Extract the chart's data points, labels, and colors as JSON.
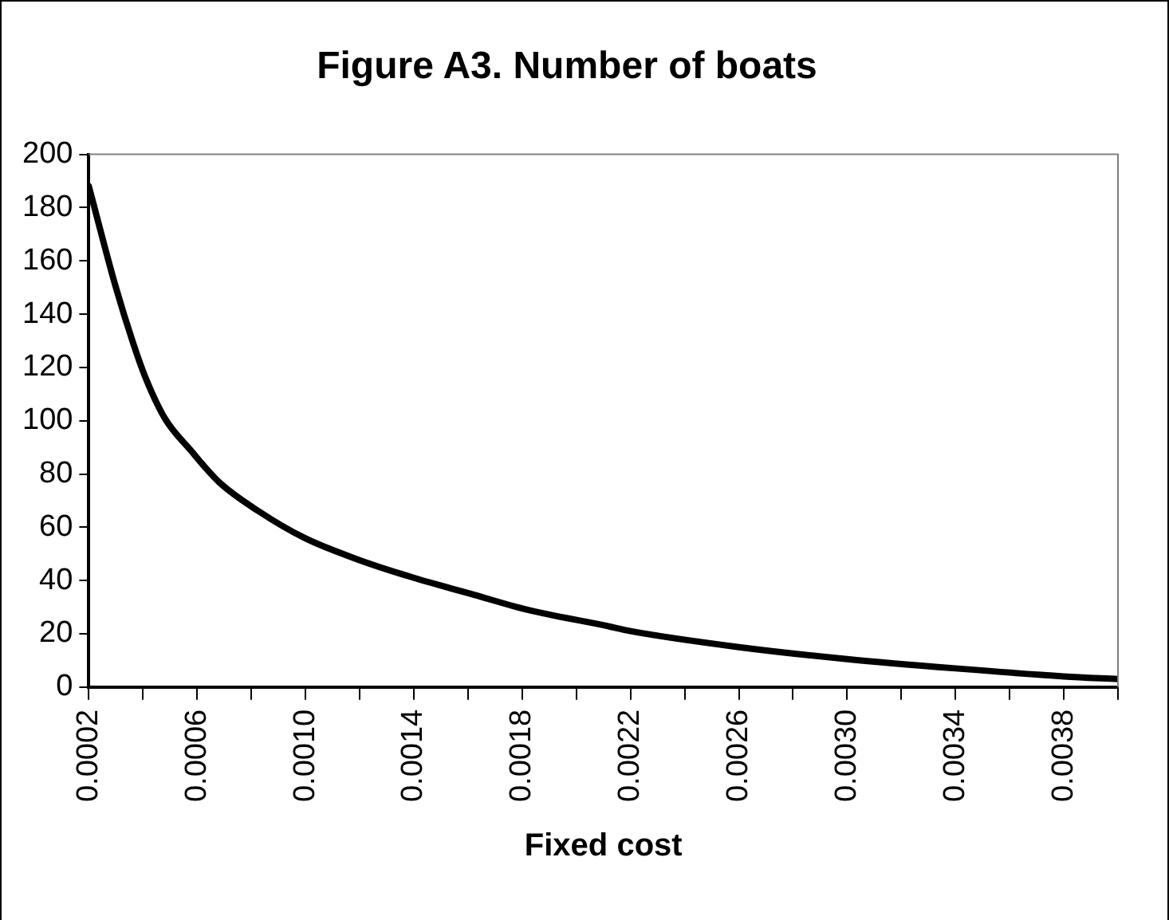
{
  "chart_data": {
    "type": "line",
    "title": "Figure A3. Number of boats",
    "xlabel": "Fixed cost",
    "x": [
      0.0002,
      0.0003,
      0.000364,
      0.000406,
      0.00048,
      0.000575,
      0.00068,
      0.000827,
      0.000996,
      0.00119,
      0.0014,
      0.00161,
      0.00182,
      0.00211,
      0.0022,
      0.0026,
      0.003,
      0.0034,
      0.0038,
      0.004
    ],
    "series": [
      {
        "color": "#000000",
        "values": [
          188,
          150,
          129,
          117,
          101,
          89,
          77,
          66,
          56,
          48,
          41,
          35,
          29,
          23,
          21,
          15,
          10.5,
          7,
          4,
          3
        ]
      }
    ],
    "xlim": [
      0.0002,
      0.004
    ],
    "xticks": [
      {
        "value": 0.0002,
        "label": "0.0002"
      },
      {
        "value": 0.0004,
        "label": null
      },
      {
        "value": 0.0006,
        "label": "0.0006"
      },
      {
        "value": 0.0008,
        "label": null
      },
      {
        "value": 0.001,
        "label": "0.0010"
      },
      {
        "value": 0.0012,
        "label": null
      },
      {
        "value": 0.0014,
        "label": "0.0014"
      },
      {
        "value": 0.0016,
        "label": null
      },
      {
        "value": 0.0018,
        "label": "0.0018"
      },
      {
        "value": 0.002,
        "label": null
      },
      {
        "value": 0.0022,
        "label": "0.0022"
      },
      {
        "value": 0.0024,
        "label": null
      },
      {
        "value": 0.0026,
        "label": "0.0026"
      },
      {
        "value": 0.0028,
        "label": null
      },
      {
        "value": 0.003,
        "label": "0.0030"
      },
      {
        "value": 0.0032,
        "label": null
      },
      {
        "value": 0.0034,
        "label": "0.0034"
      },
      {
        "value": 0.0036,
        "label": null
      },
      {
        "value": 0.0038,
        "label": "0.0038"
      },
      {
        "value": 0.004,
        "label": null
      }
    ],
    "ylim": [
      0,
      200
    ],
    "yticks": [
      0,
      20,
      40,
      60,
      80,
      100,
      120,
      140,
      160,
      180,
      200
    ],
    "grid": false,
    "legend": false,
    "marker": "none",
    "line_style": "solid"
  }
}
